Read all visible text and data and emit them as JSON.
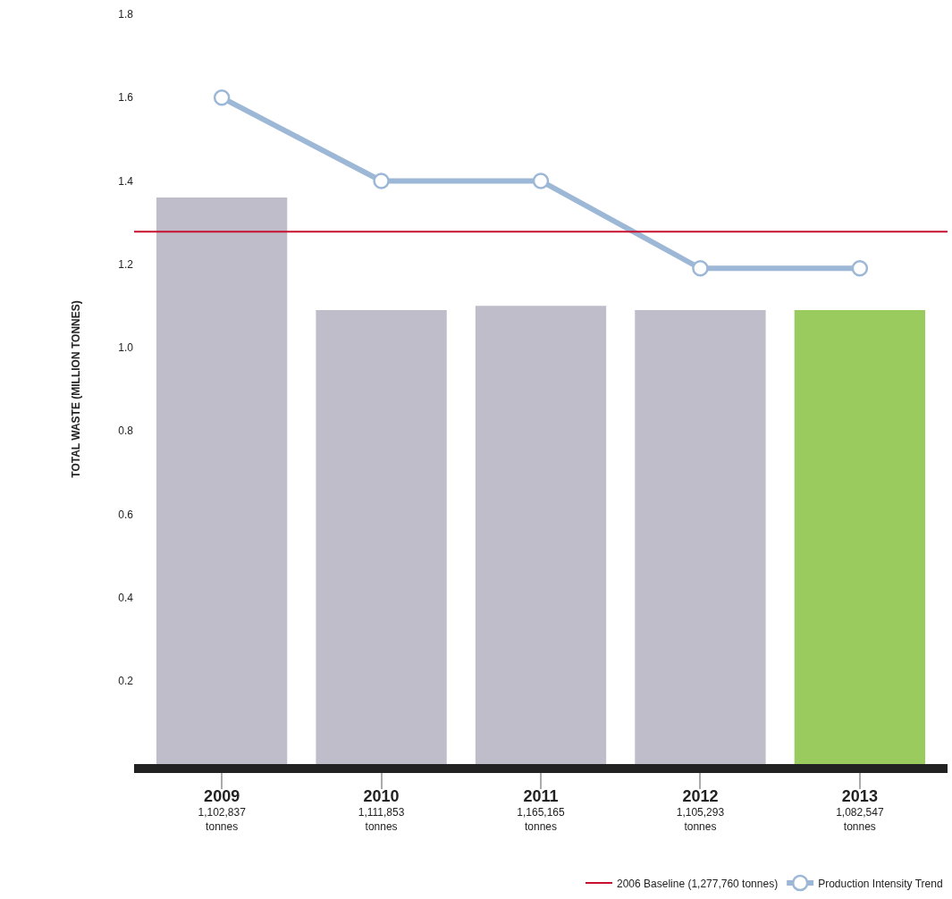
{
  "chart_data": {
    "type": "bar",
    "ylabel": "TOTAL WASTE (MILLION TONNES)",
    "categories": [
      "2009\n1,102,837\ntonnes",
      "2010\n1,111,853\ntonnes",
      "2011\n1,165,165\ntonnes",
      "2012\n1,105,293\ntonnes",
      "2013\n1,082,547\ntonnes"
    ],
    "series": [
      {
        "colors": [
          "#bebdc9",
          "#bebdc9",
          "#bebdc9",
          "#bebdc9",
          "#9acb5e"
        ],
        "values": [
          1.36,
          1.09,
          1.1,
          1.09,
          1.09
        ]
      },
      {
        "type": "line",
        "name": "Production Intensity Trend",
        "color": "#9db7d6",
        "marker": "circle",
        "values": [
          1.6,
          1.4,
          1.4,
          1.19,
          1.19
        ]
      }
    ],
    "ref_lines": [
      {
        "axis": "y",
        "value": 1.278,
        "label": "2006 Baseline (1,277,760 tonnes)",
        "color": "#c8102e"
      }
    ],
    "ylim": [
      0,
      1.8
    ],
    "yticks": [
      0.2,
      0.4,
      0.6,
      0.8,
      {
        "value": 1,
        "label": "1.0"
      },
      1.2,
      1.4,
      1.6,
      1.8
    ],
    "grid": false,
    "legend": "bottom right"
  }
}
